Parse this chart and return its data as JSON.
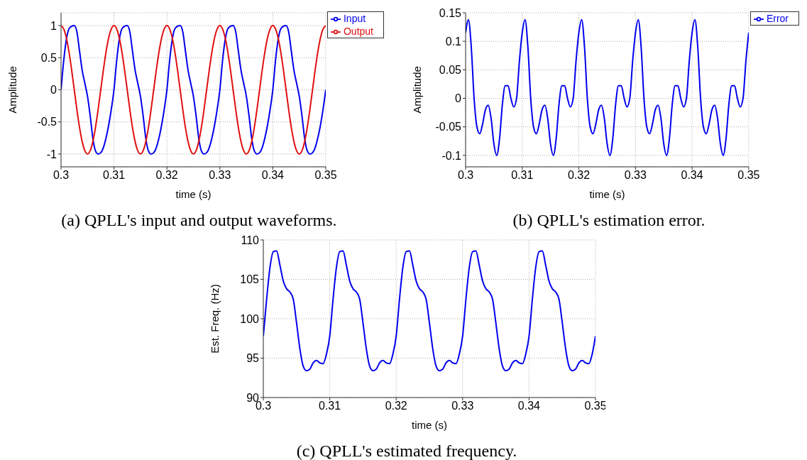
{
  "chart_data": [
    {
      "type": "line",
      "xlabel": "time (s)",
      "ylabel": "Amplitude",
      "annotations": [
        "(a) QPLL's input and output waveforms."
      ],
      "xlim": [
        0.3,
        0.35
      ],
      "xticks": [
        0.3,
        0.31,
        0.32,
        0.33,
        0.34,
        0.35
      ],
      "ylim": [
        -1.2,
        1.2
      ],
      "yticks": [
        -1,
        -0.5,
        0,
        0.5,
        1
      ],
      "grid": true,
      "legend": "top right",
      "line_style": "solid",
      "marker": "none",
      "x": [
        0.3,
        0.3005,
        0.301,
        0.3015,
        0.302,
        0.3025,
        0.303,
        0.3035,
        0.304,
        0.3045,
        0.305,
        0.3055,
        0.306,
        0.3065,
        0.307,
        0.3075,
        0.308,
        0.3085,
        0.309,
        0.3095,
        0.31,
        0.3105,
        0.311,
        0.3115,
        0.312,
        0.3125,
        0.313,
        0.3135,
        0.314,
        0.3145,
        0.315,
        0.3155,
        0.316,
        0.3165,
        0.317,
        0.3175,
        0.318,
        0.3185,
        0.319,
        0.3195,
        0.32,
        0.3205,
        0.321,
        0.3215,
        0.322,
        0.3225,
        0.323,
        0.3235,
        0.324,
        0.3245,
        0.325,
        0.3255,
        0.326,
        0.3265,
        0.327,
        0.3275,
        0.328,
        0.3285,
        0.329,
        0.3295,
        0.33,
        0.3305,
        0.331,
        0.3315,
        0.332,
        0.3325,
        0.333,
        0.3335,
        0.334,
        0.3345,
        0.335,
        0.3355,
        0.336,
        0.3365,
        0.337,
        0.3375,
        0.338,
        0.3385,
        0.339,
        0.3395,
        0.34,
        0.3405,
        0.341,
        0.3415,
        0.342,
        0.3425,
        0.343,
        0.3435,
        0.344,
        0.3445,
        0.345,
        0.3455,
        0.346,
        0.3465,
        0.347,
        0.3475,
        0.348,
        0.3485,
        0.349,
        0.3495,
        0.35
      ],
      "series": [
        {
          "name": "Input",
          "color": "#0000ee",
          "values": [
            0,
            0.45,
            0.78,
            0.95,
            0.99,
            1,
            0.9,
            0.6,
            0.3,
            0.1,
            -0.1,
            -0.4,
            -0.75,
            -0.95,
            -1,
            -0.98,
            -0.9,
            -0.75,
            -0.55,
            -0.3,
            0,
            0.45,
            0.78,
            0.95,
            0.99,
            1,
            0.9,
            0.6,
            0.3,
            0.1,
            -0.1,
            -0.4,
            -0.75,
            -0.95,
            -1,
            -0.98,
            -0.9,
            -0.75,
            -0.55,
            -0.3,
            0,
            0.45,
            0.78,
            0.95,
            0.99,
            1,
            0.9,
            0.6,
            0.3,
            0.1,
            -0.1,
            -0.4,
            -0.75,
            -0.95,
            -1,
            -0.98,
            -0.9,
            -0.75,
            -0.55,
            -0.3,
            0,
            0.45,
            0.78,
            0.95,
            0.99,
            1,
            0.9,
            0.6,
            0.3,
            0.1,
            -0.1,
            -0.4,
            -0.75,
            -0.95,
            -1,
            -0.98,
            -0.9,
            -0.75,
            -0.55,
            -0.3,
            0,
            0.45,
            0.78,
            0.95,
            0.99,
            1,
            0.9,
            0.6,
            0.3,
            0.1,
            -0.1,
            -0.4,
            -0.75,
            -0.95,
            -1,
            -0.98,
            -0.9,
            -0.75,
            -0.55,
            -0.3,
            0
          ]
        },
        {
          "name": "Output",
          "color": "#e01010",
          "values": [
            1,
            0.95,
            0.81,
            0.59,
            0.31,
            0,
            -0.31,
            -0.59,
            -0.81,
            -0.95,
            -1,
            -0.95,
            -0.81,
            -0.59,
            -0.31,
            0,
            0.31,
            0.59,
            0.81,
            0.95,
            1,
            0.95,
            0.81,
            0.59,
            0.31,
            0,
            -0.31,
            -0.59,
            -0.81,
            -0.95,
            -1,
            -0.95,
            -0.81,
            -0.59,
            -0.31,
            0,
            0.31,
            0.59,
            0.81,
            0.95,
            1,
            0.95,
            0.81,
            0.59,
            0.31,
            0,
            -0.31,
            -0.59,
            -0.81,
            -0.95,
            -1,
            -0.95,
            -0.81,
            -0.59,
            -0.31,
            0,
            0.31,
            0.59,
            0.81,
            0.95,
            1,
            0.95,
            0.81,
            0.59,
            0.31,
            0,
            -0.31,
            -0.59,
            -0.81,
            -0.95,
            -1,
            -0.95,
            -0.81,
            -0.59,
            -0.31,
            0,
            0.31,
            0.59,
            0.81,
            0.95,
            1,
            0.95,
            0.81,
            0.59,
            0.31,
            0,
            -0.31,
            -0.59,
            -0.81,
            -0.95,
            -1,
            -0.95,
            -0.81,
            -0.59,
            -0.31,
            0,
            0.31,
            0.59,
            0.81,
            0.95,
            1
          ]
        }
      ]
    },
    {
      "type": "line",
      "xlabel": "time (s)",
      "ylabel": "Amplitude",
      "annotations": [
        "(b) QPLL's estimation error."
      ],
      "xlim": [
        0.3,
        0.35
      ],
      "xticks": [
        0.3,
        0.31,
        0.32,
        0.33,
        0.34,
        0.35
      ],
      "ylim": [
        -0.12,
        0.15
      ],
      "yticks": [
        -0.1,
        -0.05,
        0,
        0.05,
        0.1,
        0.15
      ],
      "grid": true,
      "legend": "top right",
      "line_style": "solid",
      "marker": "none",
      "x": [
        0.3,
        0.3005,
        0.301,
        0.3015,
        0.302,
        0.3025,
        0.303,
        0.3035,
        0.304,
        0.3045,
        0.305,
        0.3055,
        0.306,
        0.3065,
        0.307,
        0.3075,
        0.308,
        0.3085,
        0.309,
        0.3095,
        0.31,
        0.3105,
        0.311,
        0.3115,
        0.312,
        0.3125,
        0.313,
        0.3135,
        0.314,
        0.3145,
        0.315,
        0.3155,
        0.316,
        0.3165,
        0.317,
        0.3175,
        0.318,
        0.3185,
        0.319,
        0.3195,
        0.32,
        0.3205,
        0.321,
        0.3215,
        0.322,
        0.3225,
        0.323,
        0.3235,
        0.324,
        0.3245,
        0.325,
        0.3255,
        0.326,
        0.3265,
        0.327,
        0.3275,
        0.328,
        0.3285,
        0.329,
        0.3295,
        0.33,
        0.3305,
        0.331,
        0.3315,
        0.332,
        0.3325,
        0.333,
        0.3335,
        0.334,
        0.3345,
        0.335,
        0.3355,
        0.336,
        0.3365,
        0.337,
        0.3375,
        0.338,
        0.3385,
        0.339,
        0.3395,
        0.34,
        0.3405,
        0.341,
        0.3415,
        0.342,
        0.3425,
        0.343,
        0.3435,
        0.344,
        0.3445,
        0.345,
        0.3455,
        0.346,
        0.3465,
        0.347,
        0.3475,
        0.348,
        0.3485,
        0.349,
        0.3495,
        0.35
      ],
      "series": [
        {
          "name": "Error",
          "color": "#0000ee",
          "values": [
            0.115,
            0.138,
            0.09,
            0,
            -0.05,
            -0.062,
            -0.045,
            -0.02,
            -0.012,
            -0.035,
            -0.08,
            -0.1,
            -0.07,
            -0.01,
            0.022,
            0.022,
            0,
            -0.015,
            0,
            0.065,
            0.115,
            0.138,
            0.09,
            0,
            -0.05,
            -0.062,
            -0.045,
            -0.02,
            -0.012,
            -0.035,
            -0.08,
            -0.1,
            -0.07,
            -0.01,
            0.022,
            0.022,
            0,
            -0.015,
            0,
            0.065,
            0.115,
            0.138,
            0.09,
            0,
            -0.05,
            -0.062,
            -0.045,
            -0.02,
            -0.012,
            -0.035,
            -0.08,
            -0.1,
            -0.07,
            -0.01,
            0.022,
            0.022,
            0,
            -0.015,
            0,
            0.065,
            0.115,
            0.138,
            0.09,
            0,
            -0.05,
            -0.062,
            -0.045,
            -0.02,
            -0.012,
            -0.035,
            -0.08,
            -0.1,
            -0.07,
            -0.01,
            0.022,
            0.022,
            0,
            -0.015,
            0,
            0.065,
            0.115,
            0.138,
            0.09,
            0,
            -0.05,
            -0.062,
            -0.045,
            -0.02,
            -0.012,
            -0.035,
            -0.08,
            -0.1,
            -0.07,
            -0.01,
            0.022,
            0.022,
            0,
            -0.015,
            0,
            0.065,
            0.115
          ]
        }
      ]
    },
    {
      "type": "line",
      "xlabel": "time (s)",
      "ylabel": "Est. Freq. (Hz)",
      "annotations": [
        "(c) QPLL's estimated frequency."
      ],
      "xlim": [
        0.3,
        0.35
      ],
      "xticks": [
        0.3,
        0.31,
        0.32,
        0.33,
        0.34,
        0.35
      ],
      "ylim": [
        90,
        110
      ],
      "yticks": [
        90,
        95,
        100,
        105,
        110
      ],
      "grid": true,
      "line_style": "solid",
      "marker": "none",
      "x": [
        0.3,
        0.3005,
        0.301,
        0.3015,
        0.302,
        0.3025,
        0.303,
        0.3035,
        0.304,
        0.3045,
        0.305,
        0.3055,
        0.306,
        0.3065,
        0.307,
        0.3075,
        0.308,
        0.3085,
        0.309,
        0.3095,
        0.31,
        0.3105,
        0.311,
        0.3115,
        0.312,
        0.3125,
        0.313,
        0.3135,
        0.314,
        0.3145,
        0.315,
        0.3155,
        0.316,
        0.3165,
        0.317,
        0.3175,
        0.318,
        0.3185,
        0.319,
        0.3195,
        0.32,
        0.3205,
        0.321,
        0.3215,
        0.322,
        0.3225,
        0.323,
        0.3235,
        0.324,
        0.3245,
        0.325,
        0.3255,
        0.326,
        0.3265,
        0.327,
        0.3275,
        0.328,
        0.3285,
        0.329,
        0.3295,
        0.33,
        0.3305,
        0.331,
        0.3315,
        0.332,
        0.3325,
        0.333,
        0.3335,
        0.334,
        0.3345,
        0.335,
        0.3355,
        0.336,
        0.3365,
        0.337,
        0.3375,
        0.338,
        0.3385,
        0.339,
        0.3395,
        0.34,
        0.3405,
        0.341,
        0.3415,
        0.342,
        0.3425,
        0.343,
        0.3435,
        0.344,
        0.3445,
        0.345,
        0.3455,
        0.346,
        0.3465,
        0.347,
        0.3475,
        0.348,
        0.3485,
        0.349,
        0.3495,
        0.35
      ],
      "series": [
        {
          "color": "#0000ee",
          "values": [
            97.8,
            102.5,
            106.5,
            108.5,
            108.6,
            106.8,
            104.8,
            103.8,
            103.4,
            102.5,
            99.5,
            96.2,
            94,
            93.4,
            93.6,
            94.4,
            94.7,
            94.4,
            94.3,
            95.5,
            97.8,
            102.5,
            106.5,
            108.5,
            108.6,
            106.8,
            104.8,
            103.8,
            103.4,
            102.5,
            99.5,
            96.2,
            94,
            93.4,
            93.6,
            94.4,
            94.7,
            94.4,
            94.3,
            95.5,
            97.8,
            102.5,
            106.5,
            108.5,
            108.6,
            106.8,
            104.8,
            103.8,
            103.4,
            102.5,
            99.5,
            96.2,
            94,
            93.4,
            93.6,
            94.4,
            94.7,
            94.4,
            94.3,
            95.5,
            97.8,
            102.5,
            106.5,
            108.5,
            108.6,
            106.8,
            104.8,
            103.8,
            103.4,
            102.5,
            99.5,
            96.2,
            94,
            93.4,
            93.6,
            94.4,
            94.7,
            94.4,
            94.3,
            95.5,
            97.8,
            102.5,
            106.5,
            108.5,
            108.6,
            106.8,
            104.8,
            103.8,
            103.4,
            102.5,
            99.5,
            96.2,
            94,
            93.4,
            93.6,
            94.4,
            94.7,
            94.4,
            94.3,
            95.5,
            97.8
          ]
        }
      ]
    }
  ]
}
